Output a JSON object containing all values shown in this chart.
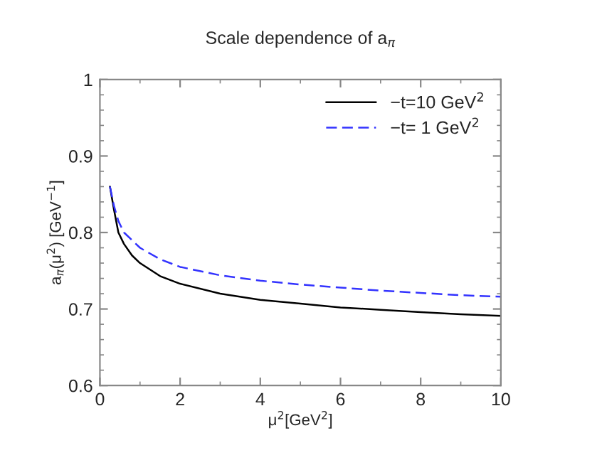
{
  "chart_data": {
    "type": "line",
    "title": "Scale dependence of a$_{π}$",
    "xlabel": "μ$^{2}$[GeV$^{2}$]",
    "ylabel": "a$_{π}$(μ$^{2}$) [GeV$^{−1}$]",
    "series": [
      {
        "name": "−t=10 GeV$^{2}$",
        "color": "#000000",
        "line_style": "solid",
        "x": [
          0.25,
          0.35,
          0.46,
          0.6,
          0.8,
          1,
          1.5,
          2,
          3,
          4,
          5,
          6,
          7,
          8,
          9,
          10
        ],
        "values": [
          0.86,
          0.83,
          0.8,
          0.785,
          0.77,
          0.76,
          0.743,
          0.733,
          0.72,
          0.712,
          0.707,
          0.702,
          0.699,
          0.696,
          0.693,
          0.691
        ]
      },
      {
        "name": "−t= 1 GeV$^{2}$",
        "color": "#3333ff",
        "line_style": "dashed",
        "x": [
          0.25,
          0.35,
          0.46,
          0.6,
          0.8,
          1,
          1.5,
          2,
          3,
          4,
          5,
          6,
          7,
          8,
          9,
          10
        ],
        "values": [
          0.86,
          0.835,
          0.815,
          0.8,
          0.79,
          0.78,
          0.765,
          0.755,
          0.744,
          0.737,
          0.732,
          0.728,
          0.724,
          0.721,
          0.718,
          0.716
        ]
      }
    ],
    "xlim": [
      0,
      10
    ],
    "xticks": [
      0,
      2,
      4,
      6,
      8,
      10
    ],
    "ylim": [
      0.6,
      1
    ],
    "yticks": [
      0.6,
      0.7,
      0.8,
      0.9,
      1
    ],
    "grid": false,
    "legend": "top right",
    "marker": "none"
  }
}
